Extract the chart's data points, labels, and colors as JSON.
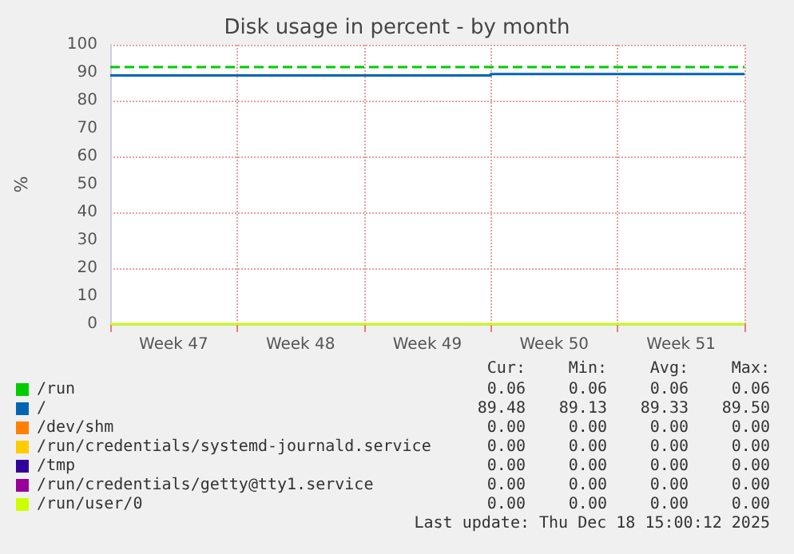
{
  "chart_data": {
    "type": "step",
    "title": "Disk usage in percent - by month",
    "ylabel": "%",
    "categories": [
      null,
      "Week 47",
      null,
      "Week 48",
      null,
      "Week 49",
      null,
      "Week 50",
      null,
      "Week 51",
      null
    ],
    "ylim": [
      0,
      100
    ],
    "yticks": [
      0,
      10,
      20,
      30,
      40,
      50,
      60,
      70,
      80,
      90,
      100
    ],
    "grid": true,
    "legend": "bottom",
    "marker": "none",
    "line_style": "solid",
    "ref_lines": [
      {
        "axis": "y",
        "value": 92,
        "color": "#00cc00",
        "line_style": "dashed"
      }
    ],
    "series": [
      {
        "name": "/run",
        "color": "#00cc00",
        "values": [
          null,
          null,
          null,
          null,
          null,
          null,
          null,
          null,
          null,
          null,
          null
        ]
      },
      {
        "name": "/",
        "color": "#0066b3",
        "values": [
          89,
          89,
          89,
          89,
          89,
          89,
          89,
          89.5,
          89.5,
          89.5,
          89.5
        ]
      },
      {
        "name": "/dev/shm",
        "color": "#ff8000",
        "values": [
          null,
          null,
          null,
          null,
          null,
          null,
          null,
          null,
          null,
          null,
          null
        ]
      },
      {
        "name": "/run/credentials/systemd-journald.service",
        "color": "#ffcc00",
        "values": [
          null,
          null,
          null,
          null,
          null,
          null,
          null,
          null,
          null,
          null,
          null
        ]
      },
      {
        "name": "/tmp",
        "color": "#330099",
        "values": [
          null,
          null,
          null,
          null,
          null,
          null,
          null,
          null,
          null,
          null,
          null
        ]
      },
      {
        "name": "/run/credentials/getty@tty1.service",
        "color": "#990099",
        "values": [
          null,
          null,
          null,
          null,
          null,
          null,
          null,
          null,
          null,
          null,
          null
        ]
      },
      {
        "name": "/run/user/0",
        "color": "#ccff00",
        "values": [
          0,
          0,
          0,
          0,
          0,
          0,
          0,
          0,
          0,
          0,
          0
        ]
      }
    ],
    "annotations": [
      "Cur:",
      "Min:",
      "Avg:",
      "Max:",
      "0.06",
      "0.06",
      "0.06",
      "0.06",
      "89.48",
      "89.13",
      "89.33",
      "89.50",
      "0.00",
      "0.00",
      "0.00",
      "0.00",
      "0.00",
      "0.00",
      "0.00",
      "0.00",
      "0.00",
      "0.00",
      "0.00",
      "0.00",
      "0.00",
      "0.00",
      "0.00",
      "0.00",
      "0.00",
      "0.00",
      "0.00",
      "0.00",
      "Last update: Thu Dec 18 15:00:12 2025"
    ]
  }
}
